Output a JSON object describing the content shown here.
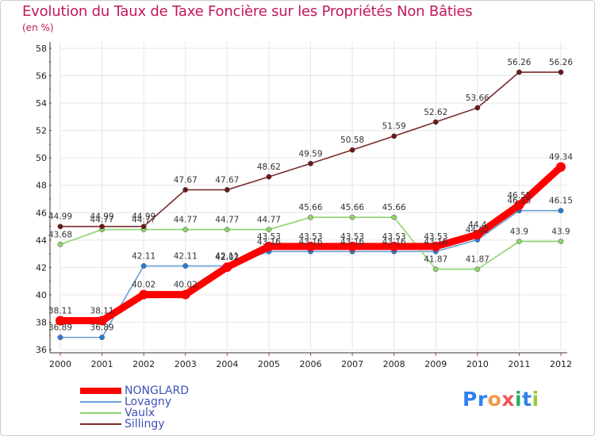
{
  "chart_data": {
    "type": "line",
    "title": "Evolution du Taux de Taxe Foncière sur les Propriétés Non Bâties",
    "ylabel": "(en %)",
    "x": [
      "2000",
      "2001",
      "2002",
      "2003",
      "2004",
      "2005",
      "2006",
      "2007",
      "2008",
      "2009",
      "2010",
      "2011",
      "2012"
    ],
    "ylim": [
      36,
      58
    ],
    "yticks": [
      "36",
      "38",
      "40",
      "42",
      "44",
      "46",
      "48",
      "50",
      "52",
      "54",
      "56",
      "58"
    ],
    "series": [
      {
        "name": "NONGLARD",
        "color": "#ff0000",
        "emphasis": true,
        "values": [
          38.11,
          38.11,
          40.02,
          40.02,
          42.02,
          43.53,
          43.53,
          43.53,
          43.53,
          43.53,
          44.4,
          46.55,
          49.34
        ],
        "labels": [
          "38.11",
          "38.11",
          "40.02",
          "40.02",
          "42.02",
          "43.53",
          "43.53",
          "43.53",
          "43.53",
          "43.53",
          "44.4",
          "46.55",
          "49.34"
        ]
      },
      {
        "name": "Lovagny",
        "color": "#6aa0d8",
        "marker": "#2a7ad0",
        "values": [
          36.89,
          36.89,
          42.11,
          42.11,
          42.11,
          43.16,
          43.16,
          43.16,
          43.16,
          43.16,
          44.02,
          46.15,
          46.15
        ],
        "labels": [
          "36.89",
          "36.89",
          "42.11",
          "42.11",
          "42.11",
          "43.16",
          "43.16",
          "43.16",
          "43.16",
          "43.16",
          "44.02",
          "46.15",
          "46.15"
        ]
      },
      {
        "name": "Vaulx",
        "color": "#8ed36b",
        "marker": "#8ed36b",
        "values": [
          43.68,
          44.77,
          44.77,
          44.77,
          44.77,
          44.77,
          45.66,
          45.66,
          45.66,
          41.87,
          41.87,
          43.9,
          43.9
        ],
        "labels": [
          "43.68",
          "44.77",
          "44.77",
          "44.77",
          "44.77",
          "44.77",
          "45.66",
          "45.66",
          "45.66",
          "41.87",
          "41.87",
          "43.9",
          "43.9"
        ]
      },
      {
        "name": "Sillingy",
        "color": "#7a2b2b",
        "marker": "#6b1818",
        "values": [
          44.99,
          44.99,
          44.99,
          47.67,
          47.67,
          48.62,
          49.59,
          50.58,
          51.59,
          52.62,
          53.66,
          56.26,
          56.26
        ],
        "labels": [
          "44.99",
          "44.99",
          "44.99",
          "47.67",
          "47.67",
          "48.62",
          "49.59",
          "50.58",
          "51.59",
          "52.62",
          "53.66",
          "56.26",
          "56.26"
        ]
      }
    ]
  },
  "legend": {
    "items": [
      "NONGLARD",
      "Lovagny",
      "Vaulx",
      "Sillingy"
    ]
  },
  "logo": {
    "letters": [
      "P",
      "r",
      "o",
      "x",
      "i",
      "t",
      "i"
    ],
    "colors": [
      "#2f80ed",
      "#2f80ed",
      "#f2994a",
      "#eb5757",
      "#27ae60",
      "#2f80ed",
      "#9bc53d"
    ]
  }
}
